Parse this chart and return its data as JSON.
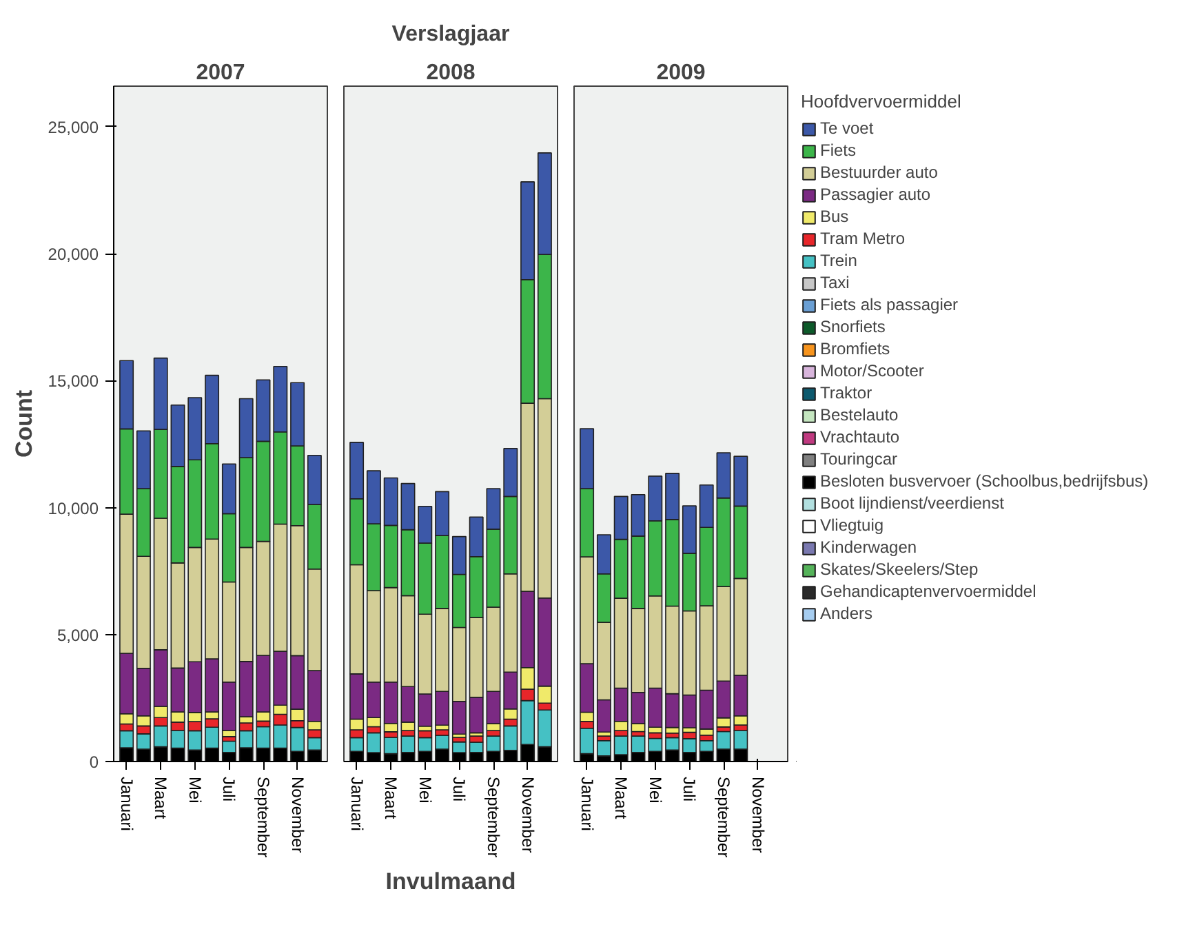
{
  "chart_data": [
    {
      "type": "bar",
      "stacked": true,
      "title": "2007",
      "ylabel": "Count",
      "grid": false,
      "legend": false,
      "categories": [
        "Januari",
        null,
        "Maart",
        null,
        "Mei",
        null,
        "Juli",
        null,
        "September",
        null,
        "November",
        null
      ],
      "ylim": [
        0,
        26600
      ],
      "yticks": [
        0,
        {
          "value": 5000,
          "label": "5,000"
        },
        {
          "value": 10000,
          "label": "10,000"
        },
        {
          "value": 15000,
          "label": "15,000"
        },
        {
          "value": 20000,
          "label": "20,000"
        },
        {
          "value": 25000,
          "label": "25,000"
        }
      ],
      "series": [
        {
          "color": "#000000",
          "values": [
            540,
            490,
            580,
            530,
            450,
            530,
            360,
            540,
            530,
            530,
            400,
            450
          ]
        },
        {
          "color": "#45c1c4",
          "values": [
            670,
            600,
            820,
            690,
            760,
            820,
            440,
            670,
            840,
            910,
            940,
            490
          ]
        },
        {
          "color": "#e8262a",
          "values": [
            270,
            310,
            330,
            330,
            360,
            330,
            180,
            310,
            220,
            420,
            270,
            310
          ]
        },
        {
          "color": "#f0ea6a",
          "values": [
            400,
            400,
            440,
            400,
            360,
            270,
            240,
            240,
            360,
            360,
            450,
            330
          ]
        },
        {
          "color": "#7b2a83",
          "values": [
            2380,
            1870,
            2230,
            1730,
            2000,
            2090,
            1910,
            2180,
            2230,
            2120,
            2110,
            2000
          ]
        },
        {
          "color": "#d3ce97",
          "values": [
            5480,
            4410,
            5180,
            4140,
            4500,
            4720,
            3940,
            4490,
            4490,
            5010,
            5120,
            4000
          ]
        },
        {
          "color": "#3cb54a",
          "values": [
            3360,
            2670,
            3500,
            3800,
            3450,
            3760,
            2690,
            3540,
            3940,
            3630,
            3140,
            2540
          ]
        },
        {
          "color": "#3c58a8",
          "values": [
            2690,
            2270,
            2810,
            2420,
            2450,
            2690,
            1960,
            2320,
            2420,
            2580,
            2490,
            1940
          ]
        }
      ]
    },
    {
      "type": "bar",
      "stacked": true,
      "title": "2008",
      "xlabel": "Invulmaand",
      "annotations": [
        "Verslagjaar"
      ],
      "grid": false,
      "legend": false,
      "tick_labels": "x",
      "categories": [
        "Januari",
        null,
        "Maart",
        null,
        "Mei",
        null,
        "Juli",
        null,
        "September",
        null,
        "November",
        null
      ],
      "ylim": [
        0,
        26600
      ],
      "series": [
        {
          "color": "#000000",
          "values": [
            400,
            350,
            310,
            360,
            400,
            490,
            350,
            360,
            400,
            440,
            670,
            580
          ]
        },
        {
          "color": "#45c1c4",
          "values": [
            540,
            780,
            640,
            640,
            540,
            540,
            420,
            400,
            600,
            960,
            1730,
            1450
          ]
        },
        {
          "color": "#e8262a",
          "values": [
            310,
            240,
            220,
            220,
            270,
            220,
            180,
            240,
            220,
            270,
            450,
            270
          ]
        },
        {
          "color": "#f0ea6a",
          "values": [
            420,
            360,
            330,
            330,
            180,
            180,
            130,
            130,
            270,
            400,
            850,
            670
          ]
        },
        {
          "color": "#7b2a83",
          "values": [
            1780,
            1400,
            1630,
            1400,
            1270,
            1330,
            1290,
            1400,
            1270,
            1450,
            3000,
            3470
          ]
        },
        {
          "color": "#d3ce97",
          "values": [
            4300,
            3600,
            3720,
            3580,
            3140,
            3270,
            2910,
            3140,
            3320,
            3870,
            7410,
            7850
          ]
        },
        {
          "color": "#3cb54a",
          "values": [
            2600,
            2630,
            2450,
            2600,
            2800,
            2870,
            2090,
            2400,
            3070,
            3050,
            4870,
            5680
          ]
        },
        {
          "color": "#3c58a8",
          "values": [
            2220,
            2090,
            1870,
            1820,
            1450,
            1730,
            1490,
            1560,
            1600,
            1890,
            3850,
            4000
          ]
        }
      ]
    },
    {
      "type": "bar",
      "stacked": true,
      "title": "2009",
      "legend_title": "Hoofdvervoermiddel",
      "grid": false,
      "legend": "right",
      "tick_labels": "x",
      "categories": [
        "Januari",
        null,
        "Maart",
        null,
        "Mei",
        null,
        "Juli",
        null,
        "September",
        null,
        "November",
        null
      ],
      "ylim": [
        0,
        26600
      ],
      "series": [
        {
          "name": "Anders",
          "color": "#a6cdf0",
          "values": [
            null,
            null,
            null,
            null,
            null,
            null,
            null,
            null,
            null,
            null,
            null,
            null
          ]
        },
        {
          "name": "Gehandicaptenvervoermiddel",
          "color": "#2a2a2a",
          "values": [
            null,
            null,
            null,
            null,
            null,
            null,
            null,
            null,
            null,
            null,
            null,
            null
          ]
        },
        {
          "name": "Skates/Skeelers/Step",
          "color": "#55b35a",
          "values": [
            null,
            null,
            null,
            null,
            null,
            null,
            null,
            null,
            null,
            null,
            null,
            null
          ]
        },
        {
          "name": "Kinderwagen",
          "color": "#7a79b0",
          "values": [
            null,
            null,
            null,
            null,
            null,
            null,
            null,
            null,
            null,
            null,
            null,
            null
          ]
        },
        {
          "name": "Vliegtuig",
          "color": "#ffffff",
          "values": [
            null,
            null,
            null,
            null,
            null,
            null,
            null,
            null,
            null,
            null,
            null,
            null
          ]
        },
        {
          "name": "Boot lijndienst/veerdienst",
          "color": "#b2e0e0",
          "values": [
            null,
            null,
            null,
            null,
            null,
            null,
            null,
            null,
            null,
            null,
            null,
            null
          ]
        },
        {
          "name": "Besloten busvervoer (Schoolbus,bedrijfsbus)",
          "color": "#000000",
          "values": [
            310,
            220,
            270,
            360,
            400,
            450,
            360,
            400,
            490,
            490,
            null,
            null
          ]
        },
        {
          "name": "Touringcar",
          "color": "#808080",
          "values": [
            null,
            null,
            null,
            null,
            null,
            null,
            null,
            null,
            null,
            null,
            null,
            null
          ]
        },
        {
          "name": "Vrachtauto",
          "color": "#c03a80",
          "values": [
            null,
            null,
            null,
            null,
            null,
            null,
            null,
            null,
            null,
            null,
            null,
            null
          ]
        },
        {
          "name": "Bestelauto",
          "color": "#c5e6c0",
          "values": [
            null,
            null,
            null,
            null,
            null,
            null,
            null,
            null,
            null,
            null,
            null,
            null
          ]
        },
        {
          "name": "Traktor",
          "color": "#0d5a6e",
          "values": [
            null,
            null,
            null,
            null,
            null,
            null,
            null,
            null,
            null,
            null,
            null,
            null
          ]
        },
        {
          "name": "Motor/Scooter",
          "color": "#d8b5dc",
          "values": [
            null,
            null,
            null,
            null,
            null,
            null,
            null,
            null,
            null,
            null,
            null,
            null
          ]
        },
        {
          "name": "Bromfiets",
          "color": "#f7941d",
          "values": [
            null,
            null,
            null,
            null,
            null,
            null,
            null,
            null,
            null,
            null,
            null,
            null
          ]
        },
        {
          "name": "Snorfiets",
          "color": "#0d5a2a",
          "values": [
            null,
            null,
            null,
            null,
            null,
            null,
            null,
            null,
            null,
            null,
            null,
            null
          ]
        },
        {
          "name": "Fiets als passagier",
          "color": "#6a9fd4",
          "values": [
            null,
            null,
            null,
            null,
            null,
            null,
            null,
            null,
            null,
            null,
            null,
            null
          ]
        },
        {
          "name": "Taxi",
          "color": "#c8c8c8",
          "values": [
            null,
            null,
            null,
            null,
            null,
            null,
            null,
            null,
            null,
            null,
            null,
            null
          ]
        },
        {
          "name": "Trein",
          "color": "#45c1c4",
          "values": [
            1000,
            600,
            730,
            640,
            510,
            490,
            540,
            420,
            690,
            730,
            null,
            null
          ]
        },
        {
          "name": "Tram Metro",
          "color": "#e8262a",
          "values": [
            270,
            180,
            220,
            180,
            220,
            180,
            250,
            220,
            180,
            220,
            null,
            null
          ]
        },
        {
          "name": "Bus",
          "color": "#f0ea6a",
          "values": [
            360,
            160,
            360,
            310,
            220,
            220,
            180,
            240,
            360,
            360,
            null,
            null
          ]
        },
        {
          "name": "Passagier auto",
          "color": "#7b2a83",
          "values": [
            1910,
            1270,
            1310,
            1230,
            1540,
            1330,
            1290,
            1530,
            1450,
            1600,
            null,
            null
          ]
        },
        {
          "name": "Bestuurder auto",
          "color": "#d3ce97",
          "values": [
            4210,
            3050,
            3540,
            3310,
            3630,
            3450,
            3310,
            3320,
            3720,
            3810,
            null,
            null
          ]
        },
        {
          "name": "Fiets",
          "color": "#3cb54a",
          "values": [
            2690,
            1910,
            2320,
            2850,
            2960,
            3410,
            2270,
            3090,
            3490,
            2850,
            null,
            null
          ]
        },
        {
          "name": "Te voet",
          "color": "#3c58a8",
          "values": [
            2360,
            1540,
            1690,
            1630,
            1760,
            1820,
            1870,
            1670,
            1780,
            1960,
            null,
            null
          ]
        }
      ]
    }
  ]
}
